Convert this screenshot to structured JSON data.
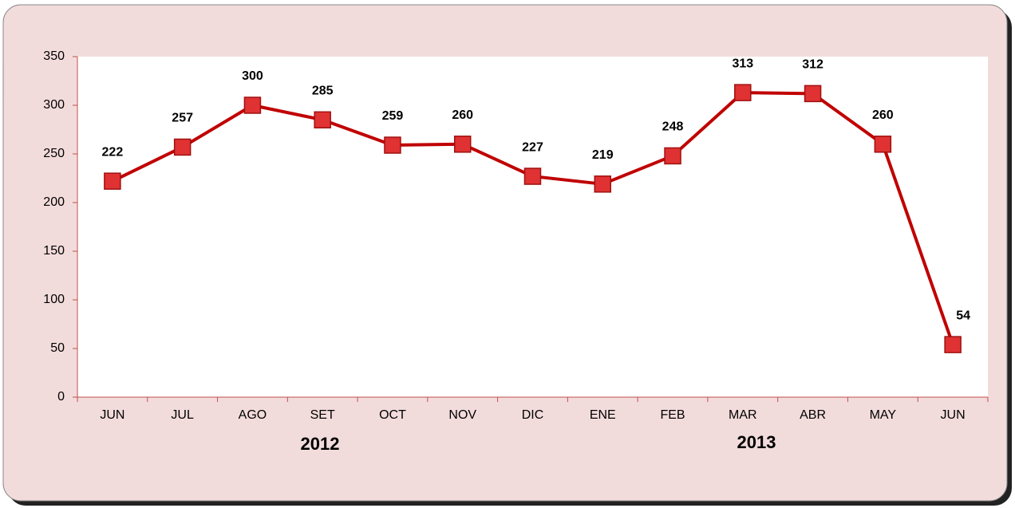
{
  "chart_data": {
    "type": "line",
    "categories": [
      "JUN",
      "JUL",
      "AGO",
      "SET",
      "OCT",
      "NOV",
      "DIC",
      "ENE",
      "FEB",
      "MAR",
      "ABR",
      "MAY",
      "JUN"
    ],
    "group_labels": [
      "2012",
      "2013"
    ],
    "series": [
      {
        "color": "#c00000",
        "values": [
          222,
          257,
          300,
          285,
          259,
          260,
          227,
          219,
          248,
          313,
          312,
          260,
          54
        ]
      }
    ],
    "ylim": [
      0,
      350
    ],
    "yticks": [
      0,
      50,
      100,
      150,
      200,
      250,
      300,
      350
    ],
    "grid": false
  }
}
